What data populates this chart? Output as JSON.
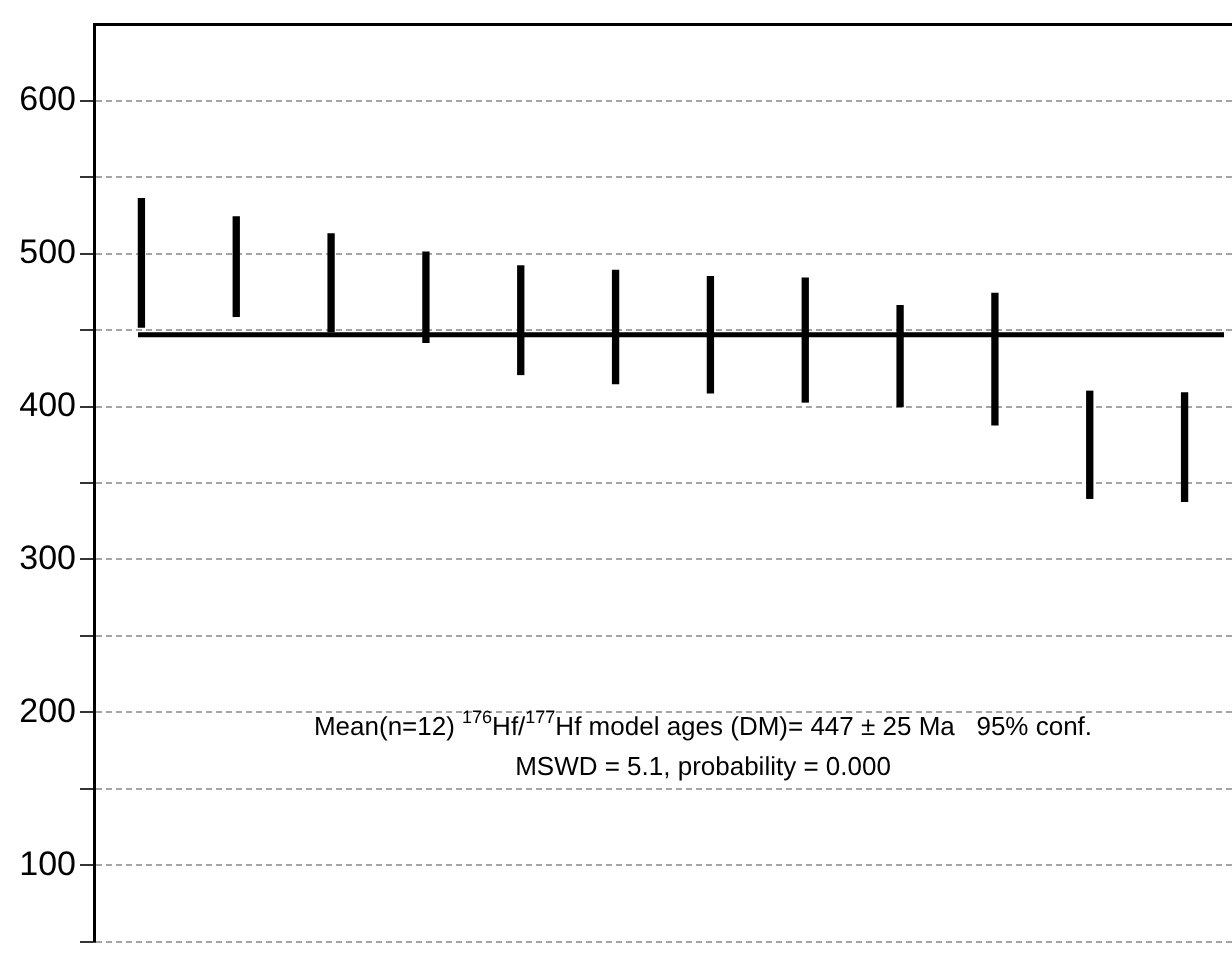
{
  "chart_data": {
    "type": "bar",
    "categories": [
      null,
      null,
      null,
      null,
      null,
      null,
      null,
      null,
      null,
      null,
      null,
      null
    ],
    "base": [
      452,
      459,
      449,
      442,
      421,
      415,
      409,
      403,
      400,
      388,
      340,
      338
    ],
    "values": [
      84,
      65,
      64,
      59,
      71,
      74,
      76,
      81,
      66,
      86,
      70,
      71
    ],
    "color": "#000000",
    "ylim": [
      50,
      650
    ],
    "yticks": [
      {
        "value": 50,
        "label": null
      },
      100,
      {
        "value": 150,
        "label": null
      },
      200,
      {
        "value": 250,
        "label": null
      },
      300,
      {
        "value": 350,
        "label": null
      },
      400,
      {
        "value": 450,
        "label": null
      },
      500,
      {
        "value": 550,
        "label": null
      },
      600
    ],
    "grid": "y",
    "legend": false,
    "ref_lines": [
      {
        "axis": "y",
        "value": 447,
        "color": "#000000"
      }
    ],
    "annotations": [
      "Mean(n=12) $^{176}$Hf/$^{177}$Hf model ages (DM)= 447 ± 25 Ma   95% conf.",
      "MSWD = 5.1, probability = 0.000"
    ]
  }
}
